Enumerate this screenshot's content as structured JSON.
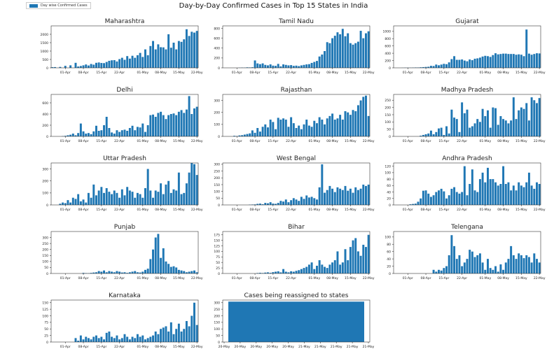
{
  "suptitle": "Day-by-Day Confirmed Cases in Top 15 States in India",
  "legend_label": "Day wise Confirmed Cases",
  "colors": {
    "bar": "#1f77b4",
    "axis": "#333333",
    "text": "#222222"
  },
  "chart_data": [
    {
      "type": "bar",
      "title": "Maharashtra",
      "ylim": [
        0,
        2500
      ],
      "yticks": [
        0,
        500,
        1000,
        1500,
        2000
      ],
      "x_tick_labels": [
        "01-Apr",
        "08-Apr",
        "15-Apr",
        "22-Apr",
        "01-May",
        "08-May",
        "15-May",
        "22-May"
      ],
      "x_tick_index": [
        5,
        12,
        19,
        26,
        35,
        42,
        49,
        56
      ],
      "values": [
        40,
        45,
        0,
        55,
        0,
        120,
        0,
        150,
        0,
        300,
        80,
        110,
        150,
        200,
        140,
        230,
        190,
        300,
        320,
        290,
        280,
        350,
        420,
        450,
        460,
        380,
        520,
        600,
        480,
        700,
        550,
        720,
        600,
        750,
        890,
        650,
        1100,
        750,
        1300,
        1600,
        1100,
        1400,
        1230,
        1220,
        1100,
        2000,
        1200,
        1500,
        1100,
        1600,
        1550,
        1700,
        2300,
        1900,
        2150,
        2100,
        2200
      ],
      "color": "#1f77b4"
    },
    {
      "type": "bar",
      "title": "Tamil Nadu",
      "ylim": [
        0,
        850
      ],
      "yticks": [
        0,
        200,
        400,
        600,
        800
      ],
      "x_tick_labels": [
        "01-Apr",
        "08-Apr",
        "15-Apr",
        "22-Apr",
        "01-May",
        "08-May",
        "15-May",
        "22-May"
      ],
      "x_tick_index": [
        5,
        12,
        19,
        26,
        35,
        42,
        49,
        56
      ],
      "values": [
        3,
        5,
        4,
        10,
        8,
        12,
        150,
        90,
        75,
        90,
        60,
        50,
        70,
        45,
        40,
        80,
        30,
        70,
        60,
        50,
        55,
        40,
        45,
        35,
        50,
        60,
        70,
        75,
        100,
        120,
        140,
        230,
        270,
        340,
        520,
        500,
        600,
        650,
        720,
        680,
        790,
        640,
        700,
        500,
        470,
        500,
        530,
        750,
        600,
        700,
        740
      ],
      "color": "#1f77b4"
    },
    {
      "type": "bar",
      "title": "Gujarat",
      "ylim": [
        0,
        1150
      ],
      "yticks": [
        0,
        200,
        400,
        600,
        800,
        1000
      ],
      "x_tick_labels": [
        "01-Apr",
        "08-Apr",
        "15-Apr",
        "22-Apr",
        "01-May",
        "08-May",
        "15-May",
        "22-May"
      ],
      "x_tick_index": [
        5,
        12,
        19,
        26,
        35,
        42,
        49,
        56
      ],
      "values": [
        2,
        4,
        5,
        4,
        6,
        10,
        10,
        15,
        20,
        25,
        30,
        55,
        50,
        90,
        70,
        90,
        110,
        100,
        150,
        240,
        320,
        220,
        220,
        230,
        200,
        180,
        230,
        210,
        250,
        260,
        280,
        310,
        330,
        320,
        300,
        350,
        400,
        370,
        380,
        390,
        390,
        380,
        380,
        380,
        360,
        370,
        360,
        320,
        1050,
        390,
        360,
        380,
        400,
        395
      ],
      "color": "#1f77b4"
    },
    {
      "type": "bar",
      "title": "Delhi",
      "ylim": [
        0,
        750
      ],
      "yticks": [
        0,
        200,
        400,
        600
      ],
      "x_tick_labels": [
        "01-Apr",
        "08-Apr",
        "15-Apr",
        "22-Apr",
        "01-May",
        "08-May",
        "15-May",
        "22-May"
      ],
      "x_tick_index": [
        5,
        12,
        19,
        26,
        35,
        42,
        49,
        56
      ],
      "values": [
        5,
        10,
        20,
        30,
        50,
        20,
        60,
        230,
        90,
        50,
        60,
        40,
        90,
        190,
        100,
        110,
        200,
        350,
        150,
        70,
        50,
        110,
        80,
        110,
        120,
        100,
        150,
        190,
        110,
        170,
        160,
        230,
        80,
        200,
        380,
        390,
        350,
        420,
        440,
        380,
        310,
        380,
        400,
        410,
        380,
        440,
        470,
        420,
        480,
        720,
        400,
        500,
        530
      ],
      "color": "#1f77b4"
    },
    {
      "type": "bar",
      "title": "Rajasthan",
      "ylim": [
        0,
        350
      ],
      "yticks": [
        0,
        100,
        200,
        300
      ],
      "x_tick_labels": [
        "01-Apr",
        "08-Apr",
        "15-Apr",
        "22-Apr",
        "01-May",
        "08-May",
        "15-May",
        "22-May"
      ],
      "x_tick_index": [
        5,
        12,
        19,
        26,
        35,
        42,
        49,
        56
      ],
      "values": [
        5,
        3,
        8,
        10,
        15,
        20,
        25,
        50,
        30,
        70,
        40,
        80,
        100,
        75,
        140,
        120,
        60,
        155,
        140,
        150,
        140,
        80,
        160,
        110,
        70,
        90,
        60,
        100,
        140,
        90,
        80,
        130,
        110,
        160,
        140,
        100,
        150,
        170,
        190,
        140,
        150,
        180,
        140,
        210,
        200,
        180,
        220,
        210,
        260,
        300,
        330,
        340,
        170
      ],
      "color": "#1f77b4"
    },
    {
      "type": "bar",
      "title": "Madhya Pradesh",
      "ylim": [
        0,
        290
      ],
      "yticks": [
        0,
        50,
        100,
        150,
        200,
        250
      ],
      "x_tick_labels": [
        "01-Apr",
        "08-Apr",
        "15-Apr",
        "22-Apr",
        "01-May",
        "08-May",
        "15-May",
        "22-May"
      ],
      "x_tick_index": [
        5,
        12,
        19,
        26,
        35,
        42,
        49,
        56
      ],
      "values": [
        5,
        10,
        15,
        20,
        40,
        15,
        30,
        55,
        60,
        10,
        70,
        20,
        185,
        130,
        120,
        30,
        235,
        160,
        185,
        60,
        70,
        90,
        120,
        100,
        190,
        140,
        180,
        60,
        200,
        195,
        80,
        140,
        120,
        110,
        90,
        110,
        270,
        120,
        180,
        200,
        190,
        230,
        110,
        270,
        250,
        230,
        265
      ],
      "color": "#1f77b4"
    },
    {
      "type": "bar",
      "title": "Uttar Pradesh",
      "ylim": [
        0,
        350
      ],
      "yticks": [
        0,
        100,
        200,
        300
      ],
      "x_tick_labels": [
        "01-Apr",
        "08-Apr",
        "15-Apr",
        "22-Apr",
        "01-May",
        "08-May",
        "15-May",
        "22-May"
      ],
      "x_tick_index": [
        5,
        12,
        19,
        26,
        35,
        42,
        49,
        56
      ],
      "values": [
        10,
        20,
        15,
        40,
        20,
        60,
        50,
        90,
        30,
        45,
        20,
        100,
        60,
        170,
        80,
        120,
        150,
        100,
        140,
        110,
        90,
        120,
        100,
        60,
        130,
        80,
        150,
        120,
        110,
        60,
        100,
        90,
        60,
        140,
        300,
        120,
        60,
        120,
        110,
        180,
        90,
        170,
        200,
        100,
        130,
        120,
        270,
        90,
        100,
        180,
        270,
        350,
        340,
        250
      ],
      "color": "#1f77b4"
    },
    {
      "type": "bar",
      "title": "West Bengal",
      "ylim": [
        0,
        310
      ],
      "yticks": [
        0,
        50,
        100,
        150,
        200,
        250,
        300
      ],
      "x_tick_labels": [
        "01-Apr",
        "08-Apr",
        "15-Apr",
        "22-Apr",
        "01-May",
        "08-May",
        "15-May",
        "22-May"
      ],
      "x_tick_index": [
        5,
        12,
        19,
        26,
        35,
        42,
        49,
        56
      ],
      "values": [
        2,
        3,
        4,
        8,
        10,
        5,
        15,
        12,
        20,
        10,
        8,
        15,
        30,
        25,
        40,
        20,
        35,
        50,
        40,
        30,
        60,
        45,
        70,
        55,
        60,
        50,
        40,
        130,
        300,
        90,
        110,
        140,
        120,
        95,
        130,
        120,
        110,
        140,
        105,
        120,
        90,
        130,
        110,
        120,
        150,
        140,
        150
      ],
      "color": "#1f77b4"
    },
    {
      "type": "bar",
      "title": "Andhra Pradesh",
      "ylim": [
        0,
        130
      ],
      "yticks": [
        0,
        20,
        40,
        60,
        80,
        100,
        120
      ],
      "x_tick_labels": [
        "01-Apr",
        "08-Apr",
        "15-Apr",
        "22-Apr",
        "01-May",
        "08-May",
        "15-May",
        "22-May"
      ],
      "x_tick_index": [
        5,
        12,
        19,
        26,
        35,
        42,
        49,
        56
      ],
      "values": [
        2,
        3,
        4,
        10,
        20,
        44,
        45,
        35,
        25,
        30,
        40,
        45,
        50,
        42,
        20,
        30,
        50,
        55,
        40,
        35,
        40,
        120,
        30,
        65,
        110,
        45,
        40,
        80,
        100,
        70,
        115,
        80,
        80,
        70,
        60,
        65,
        120,
        65,
        70,
        45,
        60,
        45,
        70,
        60,
        55,
        70,
        100,
        60,
        50,
        70,
        65
      ],
      "color": "#1f77b4"
    },
    {
      "type": "bar",
      "title": "Punjab",
      "ylim": [
        0,
        350
      ],
      "yticks": [
        0,
        50,
        100,
        150,
        200,
        250,
        300
      ],
      "x_tick_labels": [
        "01-Apr",
        "08-Apr",
        "15-Apr",
        "22-Apr",
        "01-May",
        "08-May",
        "15-May",
        "22-May"
      ],
      "x_tick_index": [
        5,
        12,
        19,
        26,
        35,
        42,
        49,
        56
      ],
      "values": [
        5,
        3,
        2,
        5,
        8,
        10,
        20,
        15,
        25,
        10,
        20,
        15,
        10,
        20,
        15,
        8,
        10,
        5,
        10,
        15,
        20,
        10,
        8,
        15,
        30,
        40,
        120,
        200,
        300,
        330,
        130,
        210,
        100,
        80,
        55,
        60,
        50,
        30,
        25,
        20,
        10,
        15,
        20,
        25,
        10
      ],
      "color": "#1f77b4"
    },
    {
      "type": "bar",
      "title": "Bihar",
      "ylim": [
        0,
        190
      ],
      "yticks": [
        0,
        25,
        50,
        75,
        100,
        125,
        150,
        175
      ],
      "x_tick_labels": [
        "01-Apr",
        "08-Apr",
        "15-Apr",
        "22-Apr",
        "01-May",
        "08-May",
        "15-May",
        "22-May"
      ],
      "x_tick_index": [
        5,
        12,
        19,
        26,
        35,
        42,
        49,
        56
      ],
      "values": [
        2,
        3,
        2,
        4,
        5,
        3,
        6,
        8,
        10,
        5,
        20,
        8,
        5,
        10,
        8,
        12,
        15,
        20,
        25,
        30,
        40,
        50,
        20,
        35,
        60,
        40,
        30,
        25,
        40,
        50,
        60,
        100,
        40,
        50,
        110,
        60,
        120,
        150,
        160,
        100,
        80,
        130,
        120,
        175
      ],
      "color": "#1f77b4"
    },
    {
      "type": "bar",
      "title": "Telengana",
      "ylim": [
        0,
        115
      ],
      "yticks": [
        0,
        20,
        40,
        60,
        80,
        100
      ],
      "x_tick_labels": [
        "01-Apr",
        "08-Apr",
        "15-Apr",
        "22-Apr",
        "01-May",
        "08-May",
        "15-May",
        "22-May"
      ],
      "x_tick_index": [
        5,
        12,
        19,
        26,
        35,
        42,
        49,
        56
      ],
      "values": [
        10,
        5,
        10,
        8,
        15,
        20,
        50,
        105,
        75,
        40,
        50,
        20,
        30,
        40,
        65,
        60,
        45,
        50,
        55,
        30,
        10,
        40,
        15,
        10,
        20,
        5,
        25,
        10,
        30,
        40,
        75,
        50,
        40,
        55,
        50,
        42,
        50,
        45,
        30,
        55,
        40,
        30
      ],
      "color": "#1f77b4"
    },
    {
      "type": "bar",
      "title": "Karnataka",
      "ylim": [
        0,
        160
      ],
      "yticks": [
        0,
        25,
        50,
        75,
        100,
        125,
        150
      ],
      "x_tick_labels": [
        "01-Apr",
        "08-Apr",
        "15-Apr",
        "22-Apr",
        "01-May",
        "08-May",
        "15-May",
        "22-May"
      ],
      "x_tick_index": [
        5,
        12,
        19,
        26,
        35,
        42,
        49,
        56
      ],
      "values": [
        15,
        5,
        25,
        10,
        20,
        15,
        10,
        20,
        25,
        15,
        20,
        10,
        35,
        40,
        20,
        15,
        25,
        10,
        15,
        30,
        20,
        10,
        20,
        15,
        30,
        20,
        25,
        10,
        15,
        20,
        25,
        40,
        30,
        50,
        55,
        60,
        40,
        75,
        30,
        50,
        70,
        40,
        50,
        80,
        60,
        100,
        150,
        65
      ],
      "color": "#1f77b4"
    },
    {
      "type": "bar",
      "title": "Cases being reassigned to states",
      "ylim": [
        0,
        320
      ],
      "yticks": [
        0,
        50,
        100,
        150,
        200,
        250,
        300
      ],
      "x_tick_labels": [
        "20-May",
        "20-May",
        "20-May",
        "20-May",
        "20-May",
        "21-May",
        "21-May",
        "21-May",
        "21-May",
        "21-May"
      ],
      "x_tick_index": [
        0,
        1,
        2,
        3,
        4,
        5,
        6,
        7,
        8,
        9
      ],
      "values": [
        308
      ],
      "color": "#1f77b4",
      "single_full_width": true
    }
  ]
}
